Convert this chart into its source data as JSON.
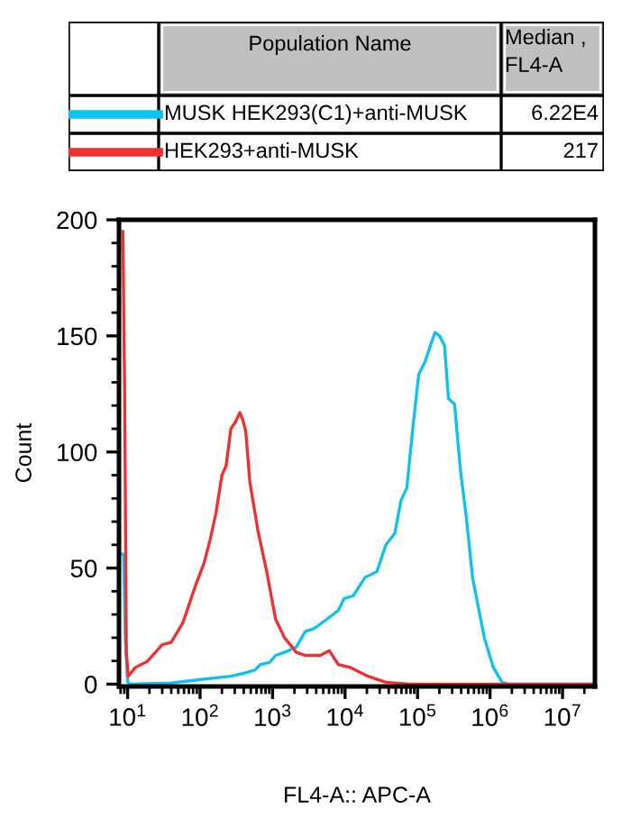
{
  "chart_data": {
    "type": "line",
    "xlabel": "FL4-A:: APC-A",
    "ylabel": "Count",
    "legend_title": "Population Name",
    "legend": "top",
    "annotations": [
      "Median ,\nFL4-A",
      "6.22E4",
      "217"
    ],
    "log": "x",
    "xlim": [
      7.6,
      28000000
    ],
    "ylim": [
      -1,
      200
    ],
    "xticks": [
      {
        "value": 10,
        "label": "10$^{1}$"
      },
      {
        "value": 100,
        "label": "10$^{2}$"
      },
      {
        "value": 1000,
        "label": "10$^{3}$"
      },
      {
        "value": 10000,
        "label": "10$^{4}$"
      },
      {
        "value": 100000,
        "label": "10$^{5}$"
      },
      {
        "value": 1000000,
        "label": "10$^{6}$"
      },
      {
        "value": 10000000,
        "label": "10$^{7}$"
      }
    ],
    "yticks": [
      0,
      50,
      100,
      150,
      200
    ],
    "grid": false,
    "marker": "none",
    "line_style": "solid",
    "series": [
      {
        "name": "MUSK HEK293(C1)+anti-MUSK",
        "color": "#10c0f0",
        "x": [
          8.5,
          8.8,
          9.3,
          10,
          10.6,
          39.8,
          103,
          266,
          387,
          566,
          683,
          908,
          1100,
          1460,
          2130,
          2830,
          3760,
          5510,
          8050,
          9720,
          12900,
          18900,
          27500,
          36600,
          48600,
          58900,
          71100,
          85800,
          104000,
          126000,
          151000,
          174000,
          201000,
          235000,
          267000,
          324000,
          391000,
          472000,
          573000,
          691000,
          834000,
          1110000,
          1470000,
          1790000,
          27000000
        ],
        "values": [
          56,
          56,
          20,
          1,
          0,
          0.5,
          2,
          3.4,
          4.6,
          6,
          8.5,
          9.3,
          12.4,
          13.7,
          16,
          22.7,
          24,
          27.8,
          31.7,
          36.9,
          38,
          46,
          48.5,
          60,
          65,
          79,
          84.5,
          110,
          133.5,
          138.7,
          146,
          151.5,
          150,
          146,
          123,
          120.6,
          92,
          71.6,
          46,
          33,
          20,
          7.2,
          0.8,
          0,
          0
        ]
      },
      {
        "name": "HEK293+anti-MUSK",
        "color": "#f03030",
        "x": [
          8.6,
          9.1,
          9.6,
          10.2,
          12.8,
          18.7,
          30,
          39.8,
          58,
          85.3,
          113,
          137,
          165,
          200,
          228,
          266,
          308,
          353,
          387,
          426,
          486,
          624,
          829,
          1100,
          1460,
          2130,
          2830,
          4560,
          6060,
          8050,
          11700,
          20700,
          36600,
          78300,
          2860000,
          27000000
        ],
        "values": [
          195,
          126,
          14,
          3.4,
          7.2,
          9.8,
          17,
          18,
          26.5,
          42,
          52,
          62,
          73.5,
          90,
          94,
          110,
          113,
          117,
          114,
          109,
          87,
          66.5,
          48.5,
          28,
          20,
          13.7,
          12.4,
          12.4,
          14.4,
          8.5,
          7.2,
          3.4,
          0.8,
          0,
          0,
          0
        ]
      }
    ]
  }
}
